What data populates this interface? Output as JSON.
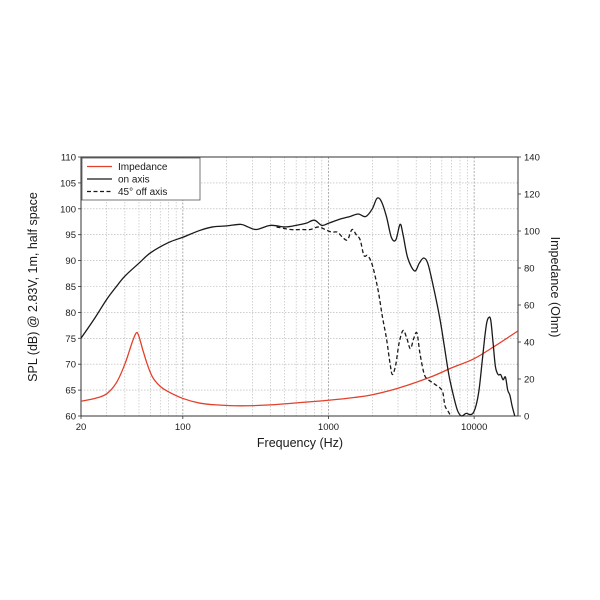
{
  "chart_data": {
    "type": "line",
    "x_scale": "log",
    "xlabel": "Frequency (Hz)",
    "ylabel_left": "SPL (dB) @ 2.83V, 1m, half space",
    "ylabel_right": "Impedance (Ohm)",
    "xlim": [
      20,
      20000
    ],
    "ylim_left": [
      60,
      110
    ],
    "ylim_right": [
      0,
      140
    ],
    "x_ticks": [
      20,
      100,
      1000,
      10000
    ],
    "x_tick_labels": [
      "20",
      "100",
      "1000",
      "10000"
    ],
    "y_left_ticks": [
      60,
      65,
      70,
      75,
      80,
      85,
      90,
      95,
      100,
      105,
      110
    ],
    "y_left_tick_labels": [
      "60",
      "65",
      "70",
      "75",
      "80",
      "85",
      "90",
      "95",
      "100",
      "105",
      "110"
    ],
    "y_right_ticks": [
      0,
      20,
      40,
      60,
      80,
      100,
      120,
      140
    ],
    "y_right_tick_labels": [
      "0",
      "20",
      "40",
      "60",
      "80",
      "100",
      "120",
      "140"
    ],
    "grid": true,
    "legend_position": "top-left",
    "series": [
      {
        "name": "Impedance",
        "axis": "right",
        "color": "#e2412b",
        "style": "solid",
        "points": [
          [
            20,
            8
          ],
          [
            25,
            9.5
          ],
          [
            30,
            12
          ],
          [
            35,
            18
          ],
          [
            40,
            28
          ],
          [
            45,
            40
          ],
          [
            48,
            45
          ],
          [
            50,
            43
          ],
          [
            53,
            36
          ],
          [
            57,
            28
          ],
          [
            62,
            21
          ],
          [
            70,
            16
          ],
          [
            80,
            13
          ],
          [
            100,
            9.5
          ],
          [
            130,
            7
          ],
          [
            170,
            6
          ],
          [
            250,
            5.5
          ],
          [
            400,
            6
          ],
          [
            700,
            7.5
          ],
          [
            1000,
            8.5
          ],
          [
            1500,
            10
          ],
          [
            2000,
            11.5
          ],
          [
            3000,
            15
          ],
          [
            5000,
            21
          ],
          [
            7000,
            26
          ],
          [
            10000,
            31
          ],
          [
            14000,
            38
          ],
          [
            20000,
            46
          ]
        ]
      },
      {
        "name": "on axis",
        "axis": "left",
        "color": "#1a1a1a",
        "style": "solid",
        "points": [
          [
            20,
            75
          ],
          [
            25,
            79
          ],
          [
            30,
            82.5
          ],
          [
            35,
            85
          ],
          [
            40,
            87
          ],
          [
            50,
            89.5
          ],
          [
            60,
            91.5
          ],
          [
            80,
            93.5
          ],
          [
            100,
            94.5
          ],
          [
            130,
            95.8
          ],
          [
            160,
            96.5
          ],
          [
            200,
            96.7
          ],
          [
            250,
            97
          ],
          [
            280,
            96.5
          ],
          [
            320,
            96
          ],
          [
            400,
            96.8
          ],
          [
            500,
            96.5
          ],
          [
            600,
            96.8
          ],
          [
            700,
            97.2
          ],
          [
            800,
            97.8
          ],
          [
            900,
            96.8
          ],
          [
            1000,
            97.2
          ],
          [
            1200,
            98
          ],
          [
            1400,
            98.5
          ],
          [
            1600,
            99
          ],
          [
            1800,
            98.5
          ],
          [
            2000,
            100
          ],
          [
            2150,
            102
          ],
          [
            2300,
            101.5
          ],
          [
            2500,
            98.5
          ],
          [
            2700,
            94.5
          ],
          [
            2900,
            94
          ],
          [
            3100,
            97
          ],
          [
            3250,
            95
          ],
          [
            3500,
            90.5
          ],
          [
            3900,
            88
          ],
          [
            4200,
            89.5
          ],
          [
            4500,
            90.5
          ],
          [
            4800,
            89.5
          ],
          [
            5200,
            85.5
          ],
          [
            5800,
            79
          ],
          [
            6200,
            74
          ],
          [
            6700,
            68
          ],
          [
            7200,
            64
          ],
          [
            7700,
            61
          ],
          [
            8200,
            60
          ],
          [
            8800,
            60.5
          ],
          [
            9300,
            60.3
          ],
          [
            9800,
            60.5
          ],
          [
            10300,
            62
          ],
          [
            10800,
            65
          ],
          [
            11300,
            70
          ],
          [
            11800,
            75
          ],
          [
            12200,
            78
          ],
          [
            12600,
            79
          ],
          [
            13000,
            78.5
          ],
          [
            13500,
            74
          ],
          [
            14000,
            69.5
          ],
          [
            14600,
            68
          ],
          [
            15200,
            68
          ],
          [
            15800,
            67
          ],
          [
            16400,
            67.5
          ],
          [
            17000,
            65
          ],
          [
            17600,
            64
          ],
          [
            18200,
            62
          ],
          [
            19000,
            60
          ]
        ]
      },
      {
        "name": "45° off axis",
        "axis": "left",
        "color": "#1a1a1a",
        "style": "dashed",
        "points": [
          [
            440,
            96.5
          ],
          [
            550,
            96
          ],
          [
            650,
            96
          ],
          [
            750,
            96
          ],
          [
            850,
            96.5
          ],
          [
            950,
            96
          ],
          [
            1050,
            95.5
          ],
          [
            1150,
            95.5
          ],
          [
            1250,
            94.5
          ],
          [
            1350,
            94
          ],
          [
            1450,
            96
          ],
          [
            1550,
            95
          ],
          [
            1650,
            94
          ],
          [
            1750,
            91
          ],
          [
            1850,
            91
          ],
          [
            1950,
            90
          ],
          [
            2050,
            88
          ],
          [
            2200,
            84
          ],
          [
            2350,
            79
          ],
          [
            2500,
            75
          ],
          [
            2650,
            70
          ],
          [
            2750,
            68
          ],
          [
            2900,
            70
          ],
          [
            3050,
            74
          ],
          [
            3250,
            76.5
          ],
          [
            3450,
            75
          ],
          [
            3650,
            73
          ],
          [
            3850,
            75
          ],
          [
            4050,
            76
          ],
          [
            4250,
            72
          ],
          [
            4550,
            68
          ],
          [
            4850,
            67
          ],
          [
            5150,
            66.5
          ],
          [
            5450,
            66
          ],
          [
            5800,
            65.5
          ],
          [
            6100,
            64.5
          ],
          [
            6300,
            62
          ],
          [
            6600,
            61
          ],
          [
            6900,
            60
          ]
        ]
      }
    ]
  }
}
